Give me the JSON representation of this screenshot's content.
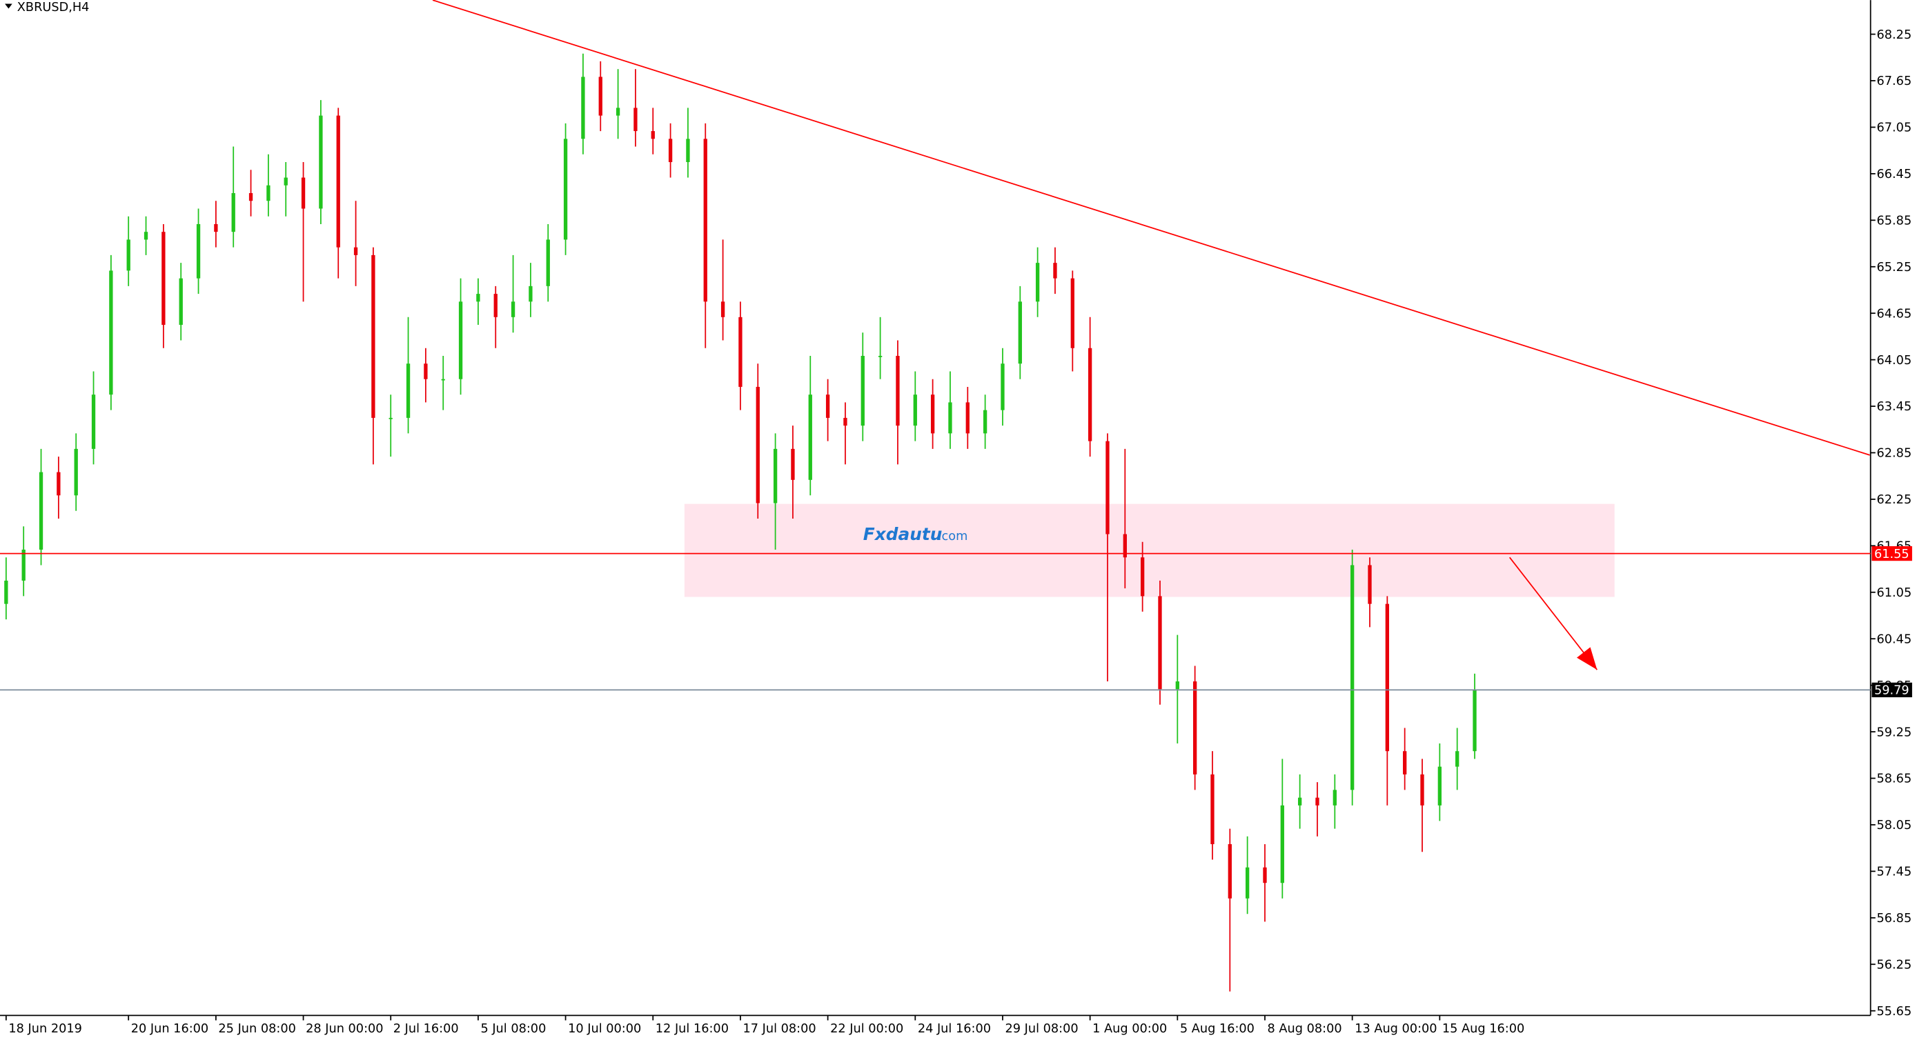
{
  "chart_data": {
    "type": "candlestick",
    "title": "XBRUSD,H4",
    "watermark": {
      "name": "Fxdautu",
      "suffix": ".com"
    },
    "up_color": "#22c41e",
    "down_color": "#e8000b",
    "ylim": [
      55.59,
      68.69
    ],
    "yticks": [
      55.65,
      56.25,
      56.85,
      57.45,
      58.05,
      58.65,
      59.25,
      59.85,
      60.45,
      61.05,
      61.65,
      62.25,
      62.85,
      63.45,
      64.05,
      64.65,
      65.25,
      65.85,
      66.45,
      67.05,
      67.65,
      68.25
    ],
    "categories": [
      "18 Jun 2019",
      null,
      null,
      null,
      null,
      null,
      null,
      "20 Jun 16:00",
      null,
      null,
      null,
      null,
      "25 Jun 08:00",
      null,
      null,
      null,
      null,
      "28 Jun 00:00",
      null,
      null,
      null,
      null,
      "2 Jul 16:00",
      null,
      null,
      null,
      null,
      "5 Jul 08:00",
      null,
      null,
      null,
      null,
      "10 Jul 00:00",
      null,
      null,
      null,
      null,
      "12 Jul 16:00",
      null,
      null,
      null,
      null,
      "17 Jul 08:00",
      null,
      null,
      null,
      null,
      "22 Jul 00:00",
      null,
      null,
      null,
      null,
      "24 Jul 16:00",
      null,
      null,
      null,
      null,
      "29 Jul 08:00",
      null,
      null,
      null,
      null,
      "1 Aug 00:00",
      null,
      null,
      null,
      null,
      "5 Aug 16:00",
      null,
      null,
      null,
      null,
      "8 Aug 08:00",
      null,
      null,
      null,
      null,
      "13 Aug 00:00",
      null,
      null,
      null,
      null,
      "15 Aug 16:00",
      null,
      null
    ],
    "candles": [
      [
        60.9,
        61.5,
        60.7,
        61.2
      ],
      [
        61.2,
        61.9,
        61.0,
        61.6
      ],
      [
        61.6,
        62.9,
        61.4,
        62.6
      ],
      [
        62.6,
        62.8,
        62.0,
        62.3
      ],
      [
        62.3,
        63.1,
        62.1,
        62.9
      ],
      [
        62.9,
        63.9,
        62.7,
        63.6
      ],
      [
        63.6,
        65.4,
        63.4,
        65.2
      ],
      [
        65.2,
        65.9,
        65.0,
        65.6
      ],
      [
        65.6,
        65.9,
        65.4,
        65.7
      ],
      [
        65.7,
        65.8,
        64.2,
        64.5
      ],
      [
        64.5,
        65.3,
        64.3,
        65.1
      ],
      [
        65.1,
        66.0,
        64.9,
        65.8
      ],
      [
        65.8,
        66.1,
        65.5,
        65.7
      ],
      [
        65.7,
        66.8,
        65.5,
        66.2
      ],
      [
        66.2,
        66.5,
        65.9,
        66.1
      ],
      [
        66.1,
        66.7,
        65.9,
        66.3
      ],
      [
        66.3,
        66.6,
        65.9,
        66.4
      ],
      [
        66.4,
        66.6,
        64.8,
        66.0
      ],
      [
        66.0,
        67.4,
        65.8,
        67.2
      ],
      [
        67.2,
        67.3,
        65.1,
        65.5
      ],
      [
        65.5,
        66.1,
        65.0,
        65.4
      ],
      [
        65.4,
        65.5,
        62.7,
        63.3
      ],
      [
        63.3,
        63.6,
        62.8,
        63.3
      ],
      [
        63.3,
        64.6,
        63.1,
        64.0
      ],
      [
        64.0,
        64.2,
        63.5,
        63.8
      ],
      [
        63.8,
        64.1,
        63.4,
        63.8
      ],
      [
        63.8,
        65.1,
        63.6,
        64.8
      ],
      [
        64.8,
        65.1,
        64.5,
        64.9
      ],
      [
        64.9,
        65.0,
        64.2,
        64.6
      ],
      [
        64.6,
        65.4,
        64.4,
        64.8
      ],
      [
        64.8,
        65.3,
        64.6,
        65.0
      ],
      [
        65.0,
        65.8,
        64.8,
        65.6
      ],
      [
        65.6,
        67.1,
        65.4,
        66.9
      ],
      [
        66.9,
        68.0,
        66.7,
        67.7
      ],
      [
        67.7,
        67.9,
        67.0,
        67.2
      ],
      [
        67.2,
        67.8,
        66.9,
        67.3
      ],
      [
        67.3,
        67.8,
        66.8,
        67.0
      ],
      [
        67.0,
        67.3,
        66.7,
        66.9
      ],
      [
        66.9,
        67.1,
        66.4,
        66.6
      ],
      [
        66.6,
        67.3,
        66.4,
        66.9
      ],
      [
        66.9,
        67.1,
        64.2,
        64.8
      ],
      [
        64.8,
        65.6,
        64.3,
        64.6
      ],
      [
        64.6,
        64.8,
        63.4,
        63.7
      ],
      [
        63.7,
        64.0,
        62.0,
        62.2
      ],
      [
        62.2,
        63.1,
        61.6,
        62.9
      ],
      [
        62.9,
        63.2,
        62.0,
        62.5
      ],
      [
        62.5,
        64.1,
        62.3,
        63.6
      ],
      [
        63.6,
        63.8,
        63.0,
        63.3
      ],
      [
        63.3,
        63.5,
        62.7,
        63.2
      ],
      [
        63.2,
        64.4,
        63.0,
        64.1
      ],
      [
        64.1,
        64.6,
        63.8,
        64.1
      ],
      [
        64.1,
        64.3,
        62.7,
        63.2
      ],
      [
        63.2,
        63.9,
        63.0,
        63.6
      ],
      [
        63.6,
        63.8,
        62.9,
        63.1
      ],
      [
        63.1,
        63.9,
        62.9,
        63.5
      ],
      [
        63.5,
        63.7,
        62.9,
        63.1
      ],
      [
        63.1,
        63.6,
        62.9,
        63.4
      ],
      [
        63.4,
        64.2,
        63.2,
        64.0
      ],
      [
        64.0,
        65.0,
        63.8,
        64.8
      ],
      [
        64.8,
        65.5,
        64.6,
        65.3
      ],
      [
        65.3,
        65.5,
        64.9,
        65.1
      ],
      [
        65.1,
        65.2,
        63.9,
        64.2
      ],
      [
        64.2,
        64.6,
        62.8,
        63.0
      ],
      [
        63.0,
        63.1,
        59.9,
        61.8
      ],
      [
        61.8,
        62.9,
        61.1,
        61.5
      ],
      [
        61.5,
        61.7,
        60.8,
        61.0
      ],
      [
        61.0,
        61.2,
        59.6,
        59.8
      ],
      [
        59.8,
        60.5,
        59.1,
        59.9
      ],
      [
        59.9,
        60.1,
        58.5,
        58.7
      ],
      [
        58.7,
        59.0,
        57.6,
        57.8
      ],
      [
        57.8,
        58.0,
        55.9,
        57.1
      ],
      [
        57.1,
        57.9,
        56.9,
        57.5
      ],
      [
        57.5,
        57.8,
        56.8,
        57.3
      ],
      [
        57.3,
        58.9,
        57.1,
        58.3
      ],
      [
        58.3,
        58.7,
        58.0,
        58.4
      ],
      [
        58.4,
        58.6,
        57.9,
        58.3
      ],
      [
        58.3,
        58.7,
        58.0,
        58.5
      ],
      [
        58.5,
        61.6,
        58.3,
        61.4
      ],
      [
        61.4,
        61.5,
        60.6,
        60.9
      ],
      [
        60.9,
        61.0,
        58.3,
        59.0
      ],
      [
        59.0,
        59.3,
        58.5,
        58.7
      ],
      [
        58.7,
        58.9,
        57.7,
        58.3
      ],
      [
        58.3,
        59.1,
        58.1,
        58.8
      ],
      [
        58.8,
        59.3,
        58.5,
        59.0
      ],
      [
        59.0,
        60.0,
        58.9,
        59.79
      ]
    ],
    "level": {
      "value": 61.55,
      "color": "#ff0000"
    },
    "trendline": {
      "x": [
        24.4,
        106.6
      ],
      "y": [
        68.69,
        62.82
      ],
      "color": "#ff0000"
    },
    "zone": {
      "x": [
        38.8,
        92
      ],
      "y": [
        62.19,
        60.99
      ],
      "color": "#ffe4ec"
    },
    "arrow": {
      "x": [
        86,
        91
      ],
      "y": [
        61.5,
        60.05
      ],
      "color": "#ff0000"
    }
  }
}
